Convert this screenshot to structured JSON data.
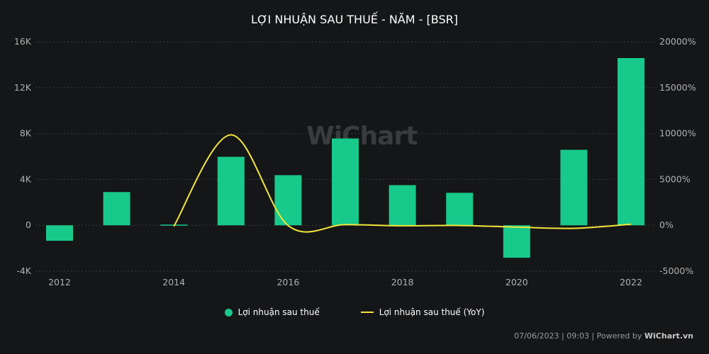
{
  "chart_data": {
    "type": "bar+line",
    "title": "LỢI NHUẬN SAU THUẾ - NĂM - [BSR]",
    "categories": [
      "2012",
      "2013",
      "2014",
      "2015",
      "2016",
      "2017",
      "2018",
      "2019",
      "2020",
      "2021",
      "2022"
    ],
    "x_tick_labels": [
      "2012",
      "2014",
      "2016",
      "2018",
      "2020",
      "2022"
    ],
    "series": [
      {
        "name": "Lợi nhuận sau thuế",
        "type": "bar",
        "axis": "left",
        "color": "#17c98a",
        "values": [
          -1350,
          2900,
          60,
          5970,
          4370,
          7570,
          3500,
          2830,
          -2830,
          6580,
          14580
        ]
      },
      {
        "name": "Lợi nhuận sau thuế (YoY)",
        "type": "line",
        "axis": "right",
        "color": "#f2e63b",
        "values": [
          null,
          null,
          -104,
          9850,
          -27,
          73,
          -54,
          -19,
          -200,
          -332,
          122
        ]
      }
    ],
    "left_axis": {
      "range": [
        -4000,
        16000
      ],
      "ticks": [
        -4000,
        0,
        4000,
        8000,
        12000,
        16000
      ],
      "tick_labels": [
        "-4K",
        "0",
        "4K",
        "8K",
        "12K",
        "16K"
      ]
    },
    "right_axis": {
      "range": [
        -5000,
        20000
      ],
      "ticks": [
        -5000,
        0,
        5000,
        10000,
        15000,
        20000
      ],
      "tick_labels": [
        "-5000%",
        "0%",
        "5000%",
        "10000%",
        "15000%",
        "20000%"
      ]
    },
    "grid": true,
    "legend": "bottom"
  },
  "watermark": "WiChart",
  "footer": {
    "timestamp": "07/06/2023 | 09:03 | Powered by ",
    "brand": "WiChart.vn"
  },
  "colors": {
    "background": "#151618",
    "bar": "#17c98a",
    "line": "#f2e63b"
  }
}
